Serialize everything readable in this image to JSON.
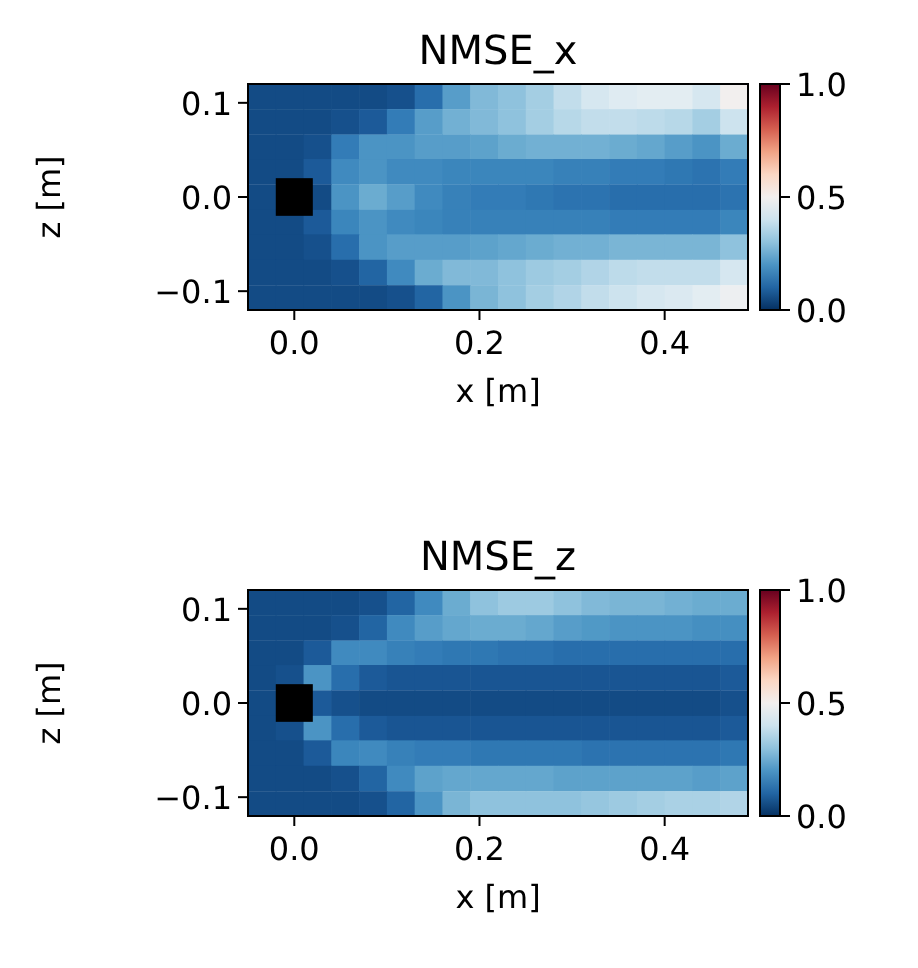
{
  "chart_data": [
    {
      "type": "heatmap",
      "title": "NMSE_x",
      "xlabel": "x [m]",
      "ylabel": "z [m]",
      "x": [
        -0.035,
        -0.005,
        0.025,
        0.055,
        0.085,
        0.115,
        0.145,
        0.175,
        0.205,
        0.235,
        0.265,
        0.295,
        0.325,
        0.355,
        0.385,
        0.415,
        0.445,
        0.475
      ],
      "y": [
        0.107,
        0.08,
        0.053,
        0.027,
        0,
        -0.027,
        -0.053,
        -0.08,
        -0.107
      ],
      "xlim": [
        -0.05,
        0.49
      ],
      "xticks": [
        {
          "value": 0,
          "label": "0.0"
        },
        {
          "value": 0.2,
          "label": "0.2"
        },
        {
          "value": 0.4,
          "label": "0.4"
        }
      ],
      "ylim": [
        -0.12,
        0.12
      ],
      "yticks": [
        {
          "value": -0.1,
          "label": "−0.1"
        },
        {
          "value": 0,
          "label": "0.0"
        },
        {
          "value": 0.1,
          "label": "0.1"
        }
      ],
      "clim": [
        0,
        1
      ],
      "cticks": [
        {
          "value": 0,
          "label": "0.0"
        },
        {
          "value": 0.5,
          "label": "0.5"
        },
        {
          "value": 1,
          "label": "1.0"
        }
      ],
      "cells": [
        [
          0.05,
          0.05,
          0.05,
          0.05,
          0.05,
          0.06,
          0.12,
          0.22,
          0.28,
          0.3,
          0.33,
          0.38,
          0.42,
          0.44,
          0.45,
          0.45,
          0.42,
          0.5
        ],
        [
          0.05,
          0.05,
          0.05,
          0.06,
          0.08,
          0.15,
          0.22,
          0.26,
          0.28,
          0.3,
          0.33,
          0.36,
          0.38,
          0.38,
          0.37,
          0.36,
          0.33,
          0.4
        ],
        [
          0.05,
          0.05,
          0.06,
          0.15,
          0.2,
          0.2,
          0.22,
          0.22,
          0.23,
          0.25,
          0.26,
          0.26,
          0.26,
          0.25,
          0.24,
          0.22,
          0.2,
          0.25
        ],
        [
          0.05,
          0.05,
          0.08,
          0.18,
          0.2,
          0.18,
          0.18,
          0.17,
          0.17,
          0.17,
          0.17,
          0.16,
          0.16,
          0.15,
          0.15,
          0.14,
          0.13,
          0.15
        ],
        [
          0.05,
          null,
          0.05,
          0.2,
          0.25,
          0.22,
          0.18,
          0.16,
          0.15,
          0.15,
          0.14,
          0.13,
          0.13,
          0.12,
          0.12,
          0.12,
          0.12,
          0.13
        ],
        [
          0.05,
          0.05,
          0.08,
          0.17,
          0.2,
          0.18,
          0.17,
          0.16,
          0.16,
          0.16,
          0.16,
          0.16,
          0.16,
          0.15,
          0.15,
          0.15,
          0.15,
          0.17
        ],
        [
          0.05,
          0.05,
          0.06,
          0.12,
          0.2,
          0.22,
          0.22,
          0.22,
          0.23,
          0.24,
          0.25,
          0.26,
          0.26,
          0.27,
          0.27,
          0.27,
          0.27,
          0.3
        ],
        [
          0.05,
          0.05,
          0.05,
          0.06,
          0.1,
          0.18,
          0.25,
          0.28,
          0.28,
          0.3,
          0.32,
          0.33,
          0.35,
          0.37,
          0.38,
          0.38,
          0.38,
          0.42
        ],
        [
          0.05,
          0.05,
          0.05,
          0.05,
          0.05,
          0.06,
          0.1,
          0.2,
          0.27,
          0.3,
          0.33,
          0.35,
          0.38,
          0.4,
          0.42,
          0.43,
          0.45,
          0.48
        ]
      ]
    },
    {
      "type": "heatmap",
      "title": "NMSE_z",
      "xlabel": "x [m]",
      "ylabel": "z [m]",
      "x": [
        -0.035,
        -0.005,
        0.025,
        0.055,
        0.085,
        0.115,
        0.145,
        0.175,
        0.205,
        0.235,
        0.265,
        0.295,
        0.325,
        0.355,
        0.385,
        0.415,
        0.445,
        0.475
      ],
      "y": [
        0.107,
        0.08,
        0.053,
        0.027,
        0,
        -0.027,
        -0.053,
        -0.08,
        -0.107
      ],
      "xlim": [
        -0.05,
        0.49
      ],
      "xticks": [
        {
          "value": 0,
          "label": "0.0"
        },
        {
          "value": 0.2,
          "label": "0.2"
        },
        {
          "value": 0.4,
          "label": "0.4"
        }
      ],
      "ylim": [
        -0.12,
        0.12
      ],
      "yticks": [
        {
          "value": -0.1,
          "label": "−0.1"
        },
        {
          "value": 0,
          "label": "0.0"
        },
        {
          "value": 0.1,
          "label": "0.1"
        }
      ],
      "clim": [
        0,
        1
      ],
      "cticks": [
        {
          "value": 0,
          "label": "0.0"
        },
        {
          "value": 0.5,
          "label": "0.5"
        },
        {
          "value": 1,
          "label": "1.0"
        }
      ],
      "cells": [
        [
          0.05,
          0.05,
          0.05,
          0.05,
          0.06,
          0.1,
          0.18,
          0.25,
          0.3,
          0.32,
          0.32,
          0.3,
          0.28,
          0.27,
          0.27,
          0.26,
          0.25,
          0.25
        ],
        [
          0.05,
          0.05,
          0.05,
          0.06,
          0.1,
          0.18,
          0.22,
          0.24,
          0.25,
          0.25,
          0.24,
          0.22,
          0.21,
          0.2,
          0.2,
          0.2,
          0.19,
          0.19
        ],
        [
          0.05,
          0.05,
          0.08,
          0.18,
          0.18,
          0.16,
          0.15,
          0.14,
          0.14,
          0.13,
          0.13,
          0.12,
          0.12,
          0.12,
          0.12,
          0.12,
          0.12,
          0.12
        ],
        [
          0.05,
          0.06,
          0.2,
          0.12,
          0.08,
          0.07,
          0.07,
          0.07,
          0.07,
          0.07,
          0.07,
          0.07,
          0.07,
          0.07,
          0.07,
          0.07,
          0.07,
          0.08
        ],
        [
          0.05,
          null,
          0.08,
          0.06,
          0.05,
          0.05,
          0.05,
          0.05,
          0.05,
          0.05,
          0.05,
          0.05,
          0.05,
          0.05,
          0.05,
          0.05,
          0.05,
          0.06
        ],
        [
          0.05,
          0.06,
          0.2,
          0.12,
          0.08,
          0.07,
          0.07,
          0.07,
          0.07,
          0.07,
          0.07,
          0.07,
          0.07,
          0.07,
          0.07,
          0.07,
          0.07,
          0.08
        ],
        [
          0.05,
          0.05,
          0.08,
          0.17,
          0.18,
          0.16,
          0.15,
          0.15,
          0.14,
          0.14,
          0.14,
          0.14,
          0.13,
          0.13,
          0.13,
          0.13,
          0.13,
          0.14
        ],
        [
          0.05,
          0.05,
          0.05,
          0.06,
          0.1,
          0.18,
          0.23,
          0.24,
          0.24,
          0.24,
          0.24,
          0.23,
          0.23,
          0.23,
          0.23,
          0.23,
          0.22,
          0.23
        ],
        [
          0.05,
          0.05,
          0.05,
          0.05,
          0.06,
          0.1,
          0.2,
          0.27,
          0.3,
          0.3,
          0.3,
          0.3,
          0.31,
          0.32,
          0.33,
          0.34,
          0.34,
          0.35
        ]
      ]
    }
  ]
}
